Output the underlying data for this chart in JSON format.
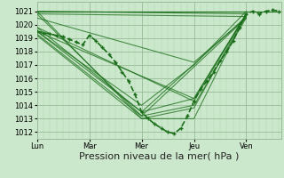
{
  "bg_color": "#cce8cc",
  "plot_bg_color": "#cce8cc",
  "grid_major_color": "#99bb99",
  "grid_minor_color": "#aaccaa",
  "line_color": "#1a6e1a",
  "xlabel": "Pression niveau de la mer( hPa )",
  "xlabel_fontsize": 8,
  "ylim": [
    1011.5,
    1021.7
  ],
  "yticks": [
    1012,
    1013,
    1014,
    1015,
    1016,
    1017,
    1018,
    1019,
    1020,
    1021
  ],
  "xtick_labels": [
    "Lun",
    "Mar",
    "Mer",
    "Jeu",
    "Ven"
  ],
  "xtick_positions": [
    0,
    24,
    48,
    72,
    96
  ],
  "xlim": [
    0,
    112
  ],
  "ensemble_lines": [
    {
      "x": [
        0,
        112
      ],
      "y": [
        1021.0,
        1021.0
      ]
    },
    {
      "x": [
        0,
        112
      ],
      "y": [
        1021.0,
        1021.0
      ]
    },
    {
      "x": [
        0,
        96
      ],
      "y": [
        1021.0,
        1020.8
      ]
    },
    {
      "x": [
        0,
        96
      ],
      "y": [
        1020.8,
        1020.6
      ]
    },
    {
      "x": [
        0,
        72,
        96
      ],
      "y": [
        1020.5,
        1017.2,
        1020.5
      ]
    },
    {
      "x": [
        0,
        72,
        96
      ],
      "y": [
        1019.8,
        1014.3,
        1020.8
      ]
    },
    {
      "x": [
        0,
        72,
        96
      ],
      "y": [
        1019.5,
        1014.5,
        1020.8
      ]
    },
    {
      "x": [
        0,
        48,
        72,
        96
      ],
      "y": [
        1019.5,
        1013.5,
        1014.5,
        1020.8
      ]
    },
    {
      "x": [
        0,
        48,
        72,
        96
      ],
      "y": [
        1019.3,
        1013.2,
        1014.0,
        1020.5
      ]
    },
    {
      "x": [
        0,
        48,
        72,
        96
      ],
      "y": [
        1019.2,
        1013.0,
        1013.8,
        1020.8
      ]
    },
    {
      "x": [
        0,
        48,
        72,
        96
      ],
      "y": [
        1019.5,
        1014.0,
        1017.0,
        1021.0
      ]
    },
    {
      "x": [
        0,
        48,
        72,
        96
      ],
      "y": [
        1021.0,
        1013.0,
        1013.0,
        1020.8
      ]
    },
    {
      "x": [
        0,
        48,
        96
      ],
      "y": [
        1020.8,
        1013.2,
        1020.5
      ]
    },
    {
      "x": [
        0,
        48,
        96
      ],
      "y": [
        1019.8,
        1013.5,
        1020.6
      ]
    }
  ],
  "main_x": [
    0,
    3,
    6,
    9,
    12,
    15,
    18,
    21,
    24,
    27,
    30,
    33,
    36,
    39,
    42,
    45,
    48,
    51,
    54,
    57,
    60,
    63,
    66,
    69,
    72,
    75,
    78,
    81,
    84,
    87,
    90,
    93,
    96,
    99,
    102,
    105,
    108,
    111
  ],
  "main_y": [
    1019.5,
    1019.4,
    1019.3,
    1019.2,
    1019.1,
    1018.9,
    1018.7,
    1018.5,
    1019.2,
    1018.8,
    1018.3,
    1017.8,
    1017.2,
    1016.5,
    1015.8,
    1014.8,
    1013.5,
    1013.0,
    1012.6,
    1012.3,
    1012.0,
    1011.9,
    1012.3,
    1013.2,
    1014.3,
    1015.2,
    1015.8,
    1016.5,
    1017.3,
    1018.0,
    1018.8,
    1019.8,
    1020.8,
    1021.0,
    1020.8,
    1021.0,
    1021.1,
    1021.0
  ]
}
